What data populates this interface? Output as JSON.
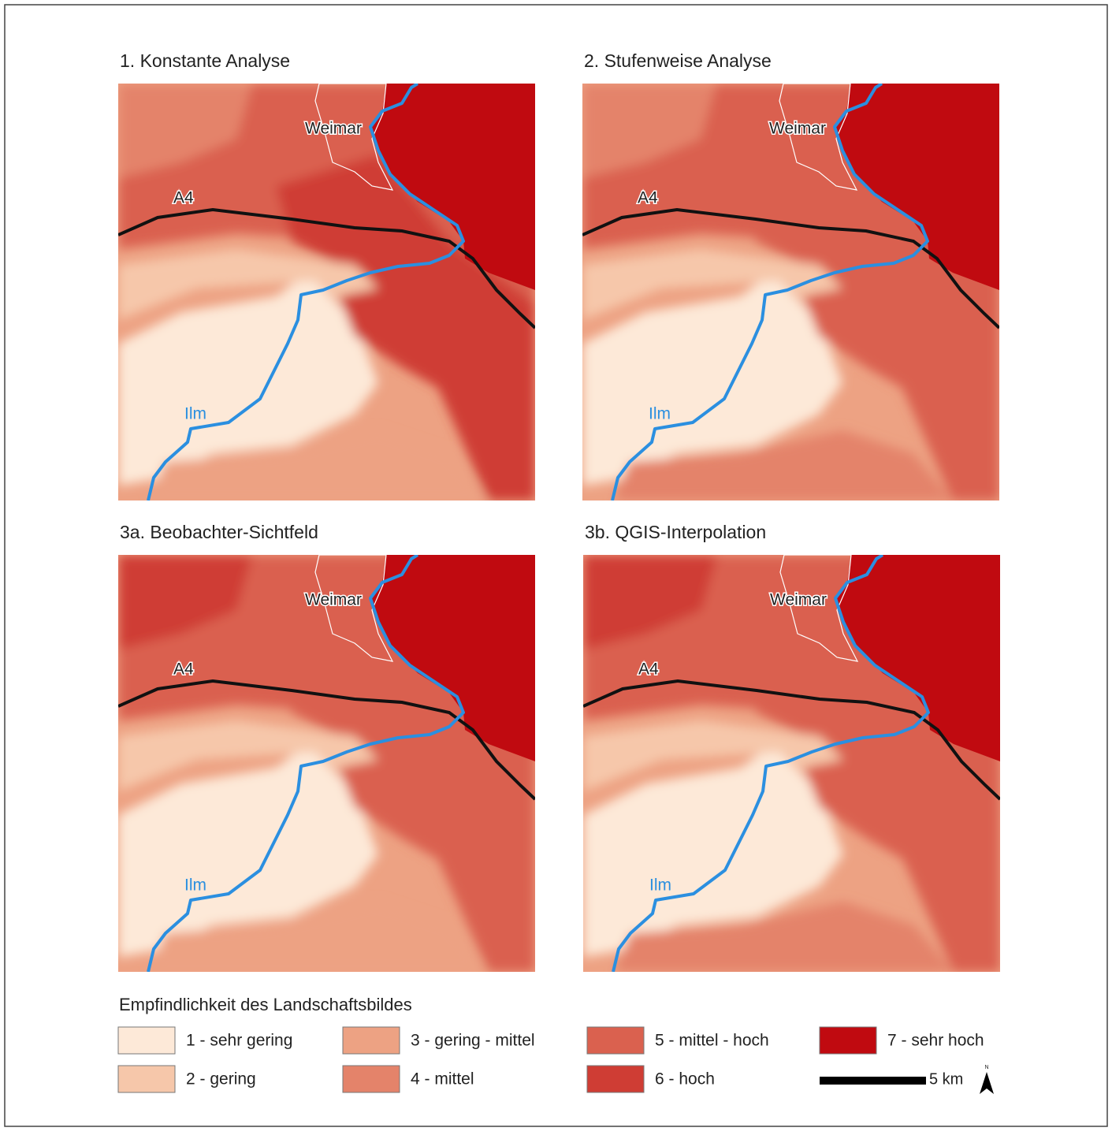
{
  "panels": [
    {
      "title": "1. Konstante Analyse"
    },
    {
      "title": "2. Stufenweise Analyse"
    },
    {
      "title": "3a. Beobachter-Sichtfeld"
    },
    {
      "title": "3b. QGIS-Interpolation"
    }
  ],
  "map_labels": {
    "city": "Weimar",
    "road": "A4",
    "river": "Ilm"
  },
  "legend": {
    "title": "Empfindlichkeit des Landschaftsbildes",
    "items": [
      {
        "label": "1 - sehr gering",
        "color": "#fde9d8"
      },
      {
        "label": "2 -  gering",
        "color": "#f6c7aa"
      },
      {
        "label": "3 - gering - mittel",
        "color": "#eda283"
      },
      {
        "label": "4 - mittel",
        "color": "#e4836a"
      },
      {
        "label": "5 - mittel - hoch",
        "color": "#da614f"
      },
      {
        "label": "6 - hoch",
        "color": "#cf3d34"
      },
      {
        "label": "7 - sehr hoch",
        "color": "#c00a10"
      }
    ],
    "scale": "5 km",
    "north": "N"
  }
}
